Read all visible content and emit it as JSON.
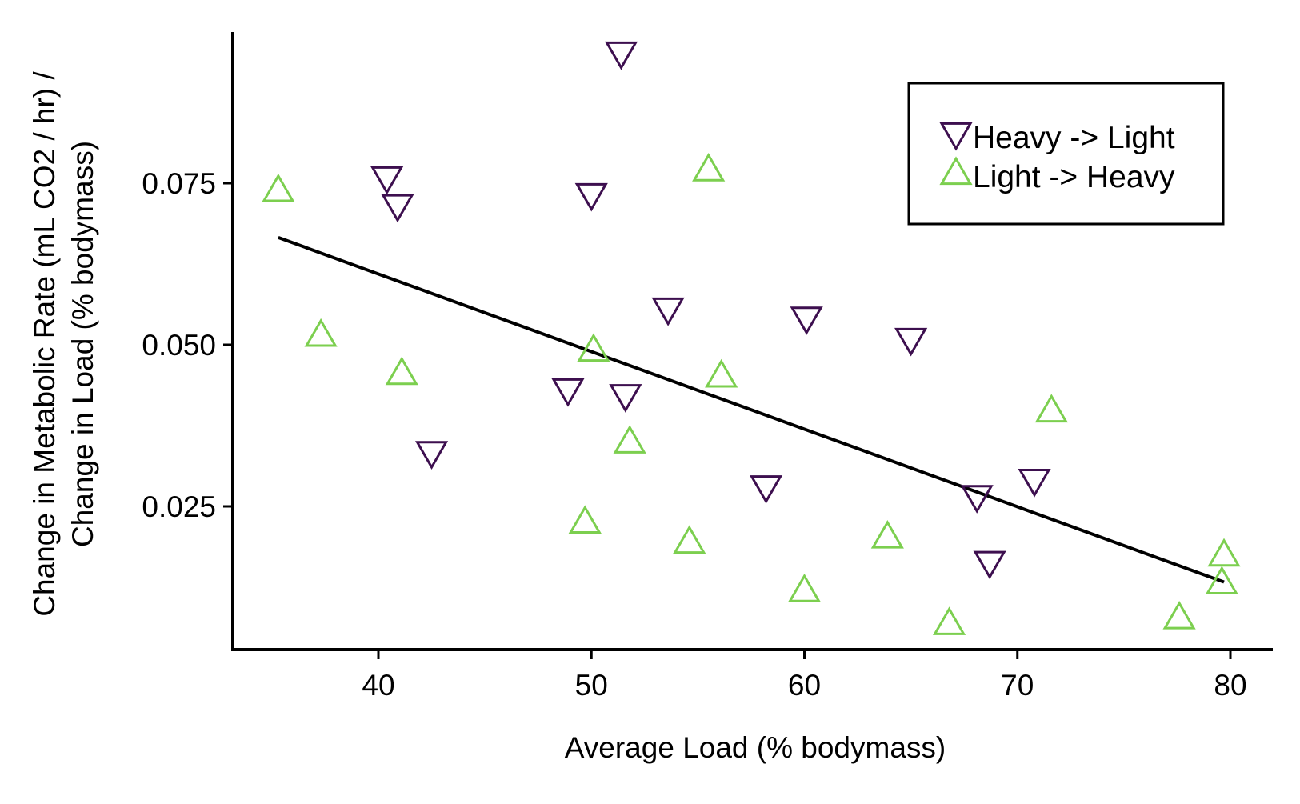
{
  "chart_data": {
    "type": "scatter",
    "xlabel": "Average Load (% bodymass)",
    "ylabel_lines": [
      "Change in Metabolic Rate (mL CO2 / hr) /",
      "Change in Load (% bodymass)"
    ],
    "xlim": [
      33.5,
      82
    ],
    "ylim": [
      0.004,
      0.097
    ],
    "xticks": [
      40,
      50,
      60,
      70,
      80
    ],
    "xtick_labels": [
      "40",
      "50",
      "60",
      "70",
      "80"
    ],
    "yticks": [
      0.025,
      0.05,
      0.075
    ],
    "ytick_labels": [
      "0.025",
      "0.050",
      "0.075"
    ],
    "grid": false,
    "legend": {
      "position": "top-right",
      "entries": [
        "Heavy -> Light",
        "Light -> Heavy"
      ]
    },
    "series": [
      {
        "name": "Heavy -> Light",
        "marker": "triangle-down",
        "color": "#3d0f4f",
        "points": [
          [
            40.4,
            0.0755
          ],
          [
            40.9,
            0.0712
          ],
          [
            42.5,
            0.033
          ],
          [
            48.9,
            0.0427
          ],
          [
            50.0,
            0.0729
          ],
          [
            51.4,
            0.0948
          ],
          [
            51.6,
            0.0418
          ],
          [
            53.6,
            0.0552
          ],
          [
            58.2,
            0.0277
          ],
          [
            60.1,
            0.0538
          ],
          [
            65.0,
            0.0505
          ],
          [
            68.1,
            0.0262
          ],
          [
            68.7,
            0.016
          ],
          [
            70.8,
            0.0287
          ]
        ]
      },
      {
        "name": "Light -> Heavy",
        "marker": "triangle-up",
        "color": "#7ccf4f",
        "points": [
          [
            35.3,
            0.0742
          ],
          [
            37.3,
            0.0518
          ],
          [
            41.1,
            0.0459
          ],
          [
            49.7,
            0.0229
          ],
          [
            50.1,
            0.0495
          ],
          [
            51.8,
            0.0353
          ],
          [
            54.6,
            0.0198
          ],
          [
            55.5,
            0.0774
          ],
          [
            56.1,
            0.0455
          ],
          [
            60.0,
            0.0123
          ],
          [
            63.9,
            0.0206
          ],
          [
            66.8,
            0.0072
          ],
          [
            71.6,
            0.0401
          ],
          [
            77.6,
            0.0081
          ],
          [
            79.6,
            0.0135
          ],
          [
            79.7,
            0.0178
          ]
        ]
      }
    ],
    "fit_line": {
      "color": "#000000",
      "points": [
        [
          35.3,
          0.0666
        ],
        [
          79.7,
          0.0133
        ]
      ]
    }
  }
}
